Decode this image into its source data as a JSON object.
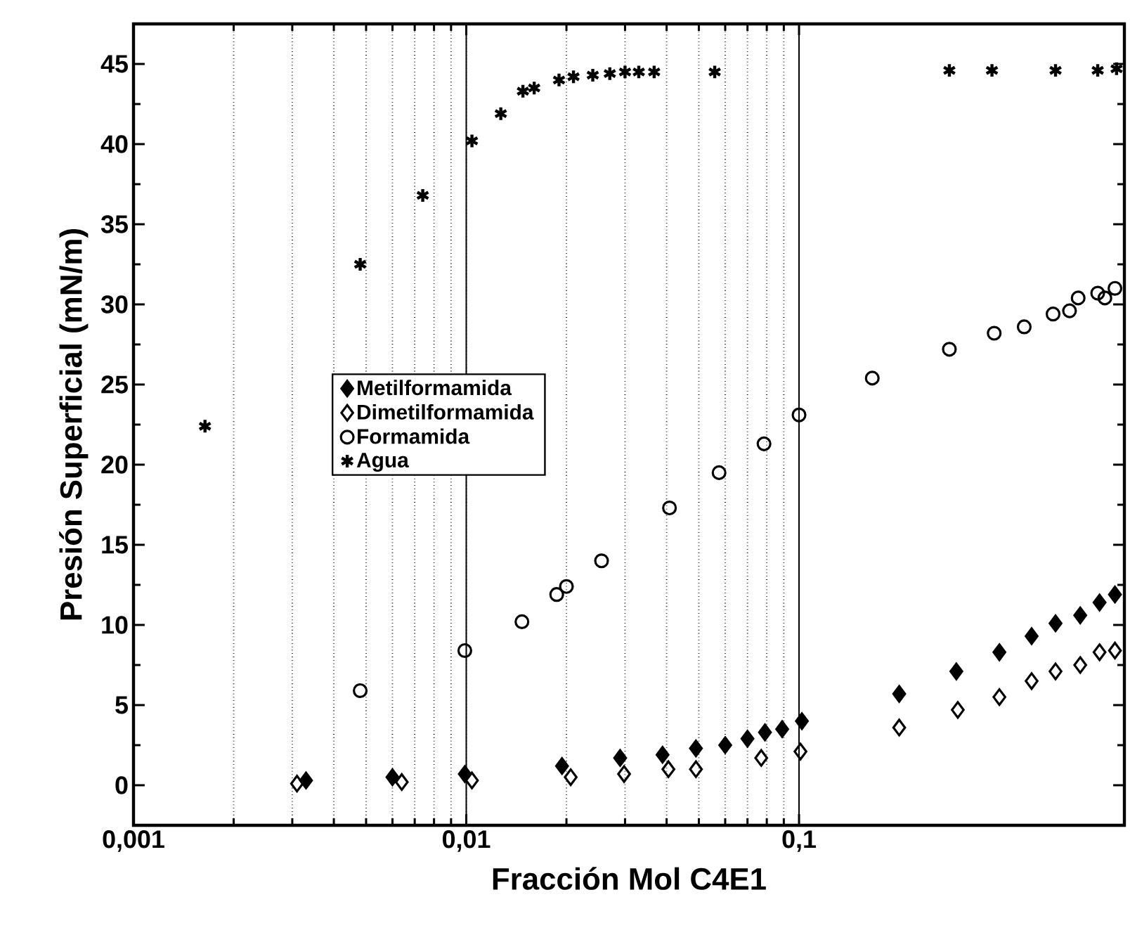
{
  "chart_data": {
    "type": "scatter",
    "xlabel": "Fracción Mol C4E1",
    "ylabel": "Presión Superficial (mN/m)",
    "log": "x",
    "grid": "x",
    "legend": "center",
    "xlim": [
      0.001,
      0.95
    ],
    "xticks": [
      {
        "value": 0.001,
        "label": "0,001"
      },
      {
        "value": 0.01,
        "label": "0,01"
      },
      {
        "value": 0.1,
        "label": "0,1"
      }
    ],
    "ylim": [
      -2.5,
      47.5
    ],
    "yticks": [
      0,
      5,
      10,
      15,
      20,
      25,
      30,
      35,
      40,
      45
    ],
    "series": [
      {
        "name": "Metilformamida",
        "color": "#000000",
        "marker": "diamond",
        "x": [
          0.0033,
          0.006,
          0.0099,
          0.0194,
          0.029,
          0.0389,
          0.049,
          0.06,
          0.07,
          0.079,
          0.089,
          0.102,
          0.2,
          0.297,
          0.4,
          0.5,
          0.59,
          0.7,
          0.8,
          0.89
        ],
        "values": [
          0.3,
          0.5,
          0.7,
          1.2,
          1.7,
          1.9,
          2.3,
          2.5,
          2.9,
          3.3,
          3.5,
          4.0,
          5.7,
          7.1,
          8.3,
          9.3,
          10.1,
          10.6,
          11.4,
          11.9
        ]
      },
      {
        "name": "Dimetilformamida",
        "color": "#000000",
        "marker": "diamond",
        "x": [
          0.0031,
          0.0064,
          0.0104,
          0.0206,
          0.0298,
          0.0405,
          0.049,
          0.077,
          0.101,
          0.2,
          0.3,
          0.4,
          0.5,
          0.59,
          0.7,
          0.8,
          0.89
        ],
        "values": [
          0.1,
          0.2,
          0.3,
          0.5,
          0.7,
          1.0,
          1.0,
          1.7,
          2.1,
          3.6,
          4.7,
          5.5,
          6.5,
          7.1,
          7.5,
          8.3,
          8.4
        ]
      },
      {
        "name": "Formamida",
        "color": "#000000",
        "marker": "circle",
        "x": [
          0.0048,
          0.0099,
          0.0147,
          0.0187,
          0.02,
          0.0255,
          0.0408,
          0.0575,
          0.0785,
          0.1,
          0.166,
          0.283,
          0.386,
          0.475,
          0.58,
          0.65,
          0.69,
          0.79,
          0.83,
          0.89
        ],
        "values": [
          5.9,
          8.4,
          10.2,
          11.9,
          12.4,
          14.0,
          17.3,
          19.5,
          21.3,
          23.1,
          25.4,
          27.2,
          28.2,
          28.6,
          29.4,
          29.6,
          30.4,
          30.7,
          30.4,
          31.0
        ]
      },
      {
        "name": "Agua",
        "color": "#000000",
        "marker": "cross",
        "x": [
          0.00164,
          0.0048,
          0.0074,
          0.0104,
          0.0127,
          0.0148,
          0.016,
          0.019,
          0.021,
          0.024,
          0.027,
          0.03,
          0.033,
          0.0367,
          0.0558,
          0.283,
          0.38,
          0.59,
          0.79,
          0.9
        ],
        "values": [
          22.4,
          32.5,
          36.8,
          40.2,
          41.9,
          43.3,
          43.5,
          44.0,
          44.2,
          44.3,
          44.4,
          44.5,
          44.5,
          44.5,
          44.5,
          44.6,
          44.6,
          44.6,
          44.6,
          44.7
        ]
      }
    ]
  }
}
